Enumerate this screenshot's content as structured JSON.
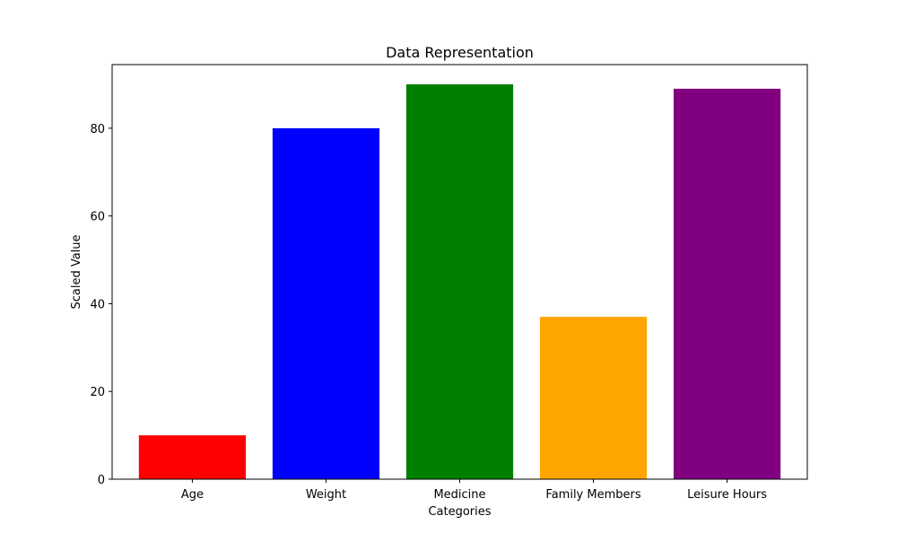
{
  "chart_data": {
    "type": "bar",
    "title": "Data Representation",
    "xlabel": "Categories",
    "ylabel": "Scaled Value",
    "categories": [
      "Age",
      "Weight",
      "Medicine",
      "Family Members",
      "Leisure Hours"
    ],
    "values": [
      10,
      80,
      90,
      37,
      89
    ],
    "colors": [
      "#ff0000",
      "#0000ff",
      "#008000",
      "#ffa500",
      "#800080"
    ],
    "ylim": [
      0,
      94.5
    ],
    "yticks": [
      0,
      20,
      40,
      60,
      80
    ],
    "ytick_labels": [
      "0",
      "20",
      "40",
      "60",
      "80"
    ],
    "grid": false,
    "legend": "none"
  }
}
